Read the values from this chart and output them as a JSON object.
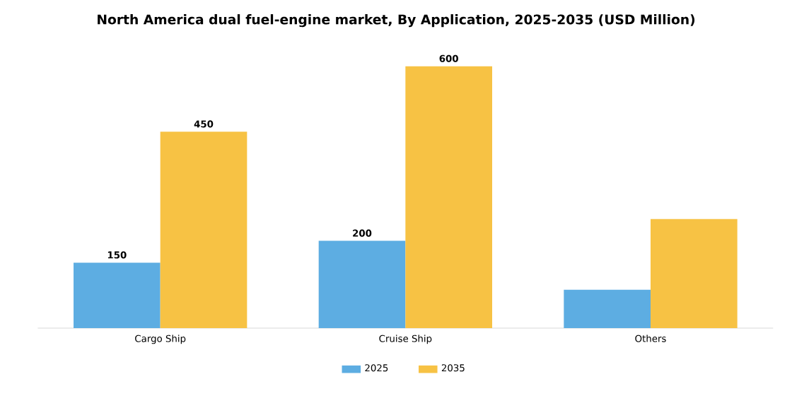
{
  "chart_data": {
    "type": "bar",
    "title": "North America dual fuel-engine market, By Application, 2025-2035 (USD Million)",
    "categories": [
      "Cargo Ship",
      "Cruise Ship",
      "Others"
    ],
    "series": [
      {
        "name": "2025",
        "color": "#5dade2",
        "values": [
          150,
          200,
          88
        ],
        "value_labels": [
          "150",
          "200",
          null
        ]
      },
      {
        "name": "2035",
        "color": "#f7c244",
        "values": [
          450,
          600,
          250
        ],
        "value_labels": [
          "450",
          "600",
          null
        ]
      }
    ],
    "legend": "bottom"
  }
}
